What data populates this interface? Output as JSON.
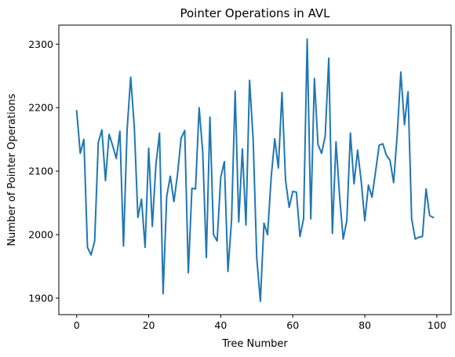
{
  "chart_data": {
    "type": "line",
    "title": "Pointer Operations in AVL",
    "xlabel": "Tree Number",
    "ylabel": "Number of Pointer Operations",
    "xlim": [
      -4.95,
      103.95
    ],
    "ylim": [
      1874,
      2330
    ],
    "xticks": [
      0,
      20,
      40,
      60,
      80,
      100
    ],
    "yticks": [
      1900,
      2000,
      2100,
      2200,
      2300
    ],
    "grid": false,
    "legend": "none",
    "series": [
      {
        "color": "#1f77b4",
        "x": [
          0,
          1,
          2,
          3,
          4,
          5,
          6,
          7,
          8,
          9,
          10,
          11,
          12,
          13,
          14,
          15,
          16,
          17,
          18,
          19,
          20,
          21,
          22,
          23,
          24,
          25,
          26,
          27,
          28,
          29,
          30,
          31,
          32,
          33,
          34,
          35,
          36,
          37,
          38,
          39,
          40,
          41,
          42,
          43,
          44,
          45,
          46,
          47,
          48,
          49,
          50,
          51,
          52,
          53,
          54,
          55,
          56,
          57,
          58,
          59,
          60,
          61,
          62,
          63,
          64,
          65,
          66,
          67,
          68,
          69,
          70,
          71,
          72,
          73,
          74,
          75,
          76,
          77,
          78,
          79,
          80,
          81,
          82,
          83,
          84,
          85,
          86,
          87,
          88,
          89,
          90,
          91,
          92,
          93,
          94,
          95,
          96,
          97,
          98,
          99
        ],
        "values": [
          2195,
          2128,
          2150,
          1980,
          1968,
          1990,
          2145,
          2165,
          2085,
          2158,
          2140,
          2120,
          2163,
          1982,
          2165,
          2248,
          2170,
          2027,
          2056,
          1980,
          2136,
          2013,
          2110,
          2160,
          1907,
          2060,
          2092,
          2052,
          2095,
          2152,
          2164,
          1940,
          2073,
          2072,
          2200,
          2130,
          1964,
          2185,
          2000,
          1990,
          2090,
          2115,
          1942,
          2023,
          2226,
          2020,
          2135,
          2015,
          2243,
          2150,
          1963,
          1895,
          2018,
          2000,
          2090,
          2151,
          2105,
          2224,
          2085,
          2043,
          2068,
          2067,
          1997,
          2025,
          2308,
          2025,
          2246,
          2142,
          2128,
          2155,
          2278,
          2002,
          2146,
          2060,
          1993,
          2022,
          2160,
          2080,
          2133,
          2084,
          2022,
          2078,
          2059,
          2100,
          2141,
          2143,
          2125,
          2117,
          2082,
          2158,
          2256,
          2173,
          2225,
          2025,
          1993,
          1996,
          1997,
          2072,
          2030,
          2027
        ]
      }
    ]
  }
}
